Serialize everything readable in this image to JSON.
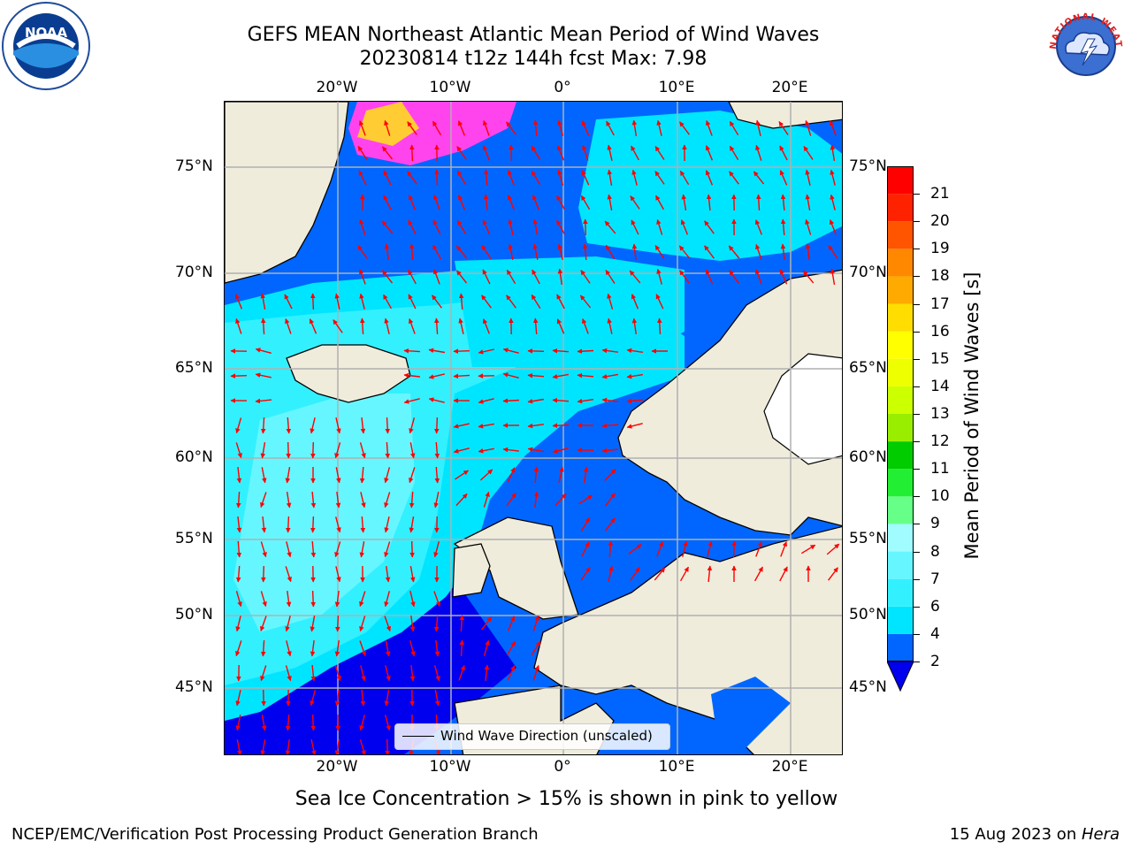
{
  "header": {
    "title_line1": "GEFS MEAN Northeast Atlantic Mean Period of Wind Waves",
    "title_line2": "20230814 t12z 144h fcst   Max: 7.98",
    "left_logo_icon": "noaa-logo-icon",
    "left_logo_text": "NOAA",
    "right_logo_icon": "national-weather-service-logo-icon",
    "right_logo_text": "NATIONAL WEATHER SERVICE"
  },
  "map": {
    "lon_ticks": [
      "20°W",
      "10°W",
      "0°",
      "10°E",
      "20°E"
    ],
    "lat_ticks": [
      "75°N",
      "70°N",
      "65°N",
      "60°N",
      "55°N",
      "50°N",
      "45°N"
    ],
    "legend_label": "Wind Wave Direction (unscaled)",
    "land_color": "#efecdc",
    "arrow_color": "#ff0000",
    "grid_color": "#b0b0b0"
  },
  "colorbar": {
    "label": "Mean Period of Wind Waves [s]",
    "ticks": [
      "2",
      "4",
      "6",
      "7",
      "8",
      "9",
      "10",
      "11",
      "12",
      "13",
      "14",
      "15",
      "16",
      "17",
      "18",
      "19",
      "20",
      "21"
    ],
    "colors": [
      "#0066ff",
      "#00e5ff",
      "#33f0ff",
      "#66f6ff",
      "#a0fcff",
      "#66ff88",
      "#22ee33",
      "#00cc00",
      "#99ee00",
      "#ccff00",
      "#eeff00",
      "#ffff00",
      "#ffdd00",
      "#ffaa00",
      "#ff8800",
      "#ff5500",
      "#ff2200",
      "#ff0000"
    ],
    "under_color": "#0000ee"
  },
  "subtitle": "Sea Ice Concentration > 15% is shown in pink to yellow",
  "footer": {
    "left": "NCEP/EMC/Verification Post Processing Product Generation Branch",
    "right_date": "15 Aug 2023 on ",
    "right_host": "Hera"
  }
}
